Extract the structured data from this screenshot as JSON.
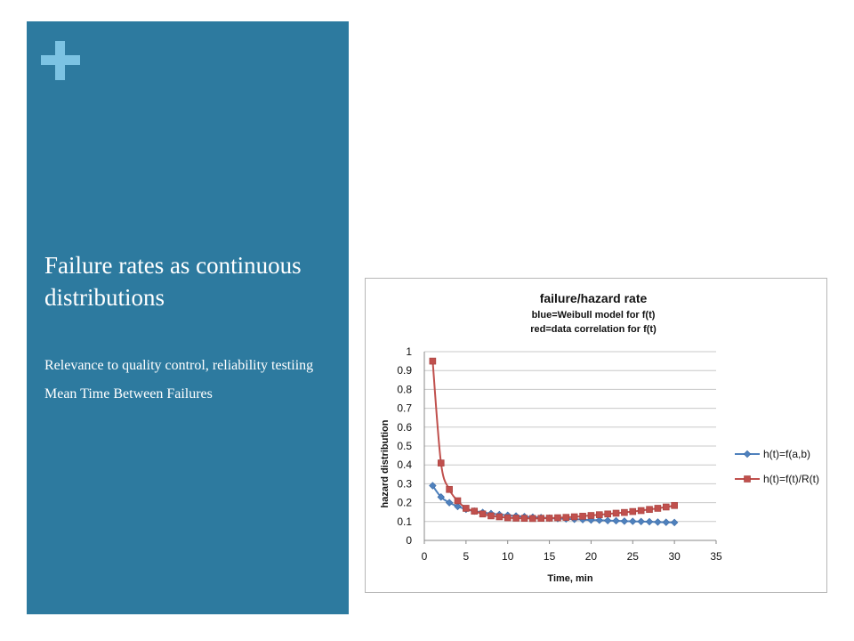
{
  "slide": {
    "title": "Failure rates as continuous distributions",
    "bullets": [
      "Relevance to quality control, reliability testiing",
      "Mean Time Between Failures"
    ],
    "panel_color": "#2d7a9f",
    "plus_color": "#7cc3e3",
    "plus_icon": "plus-icon"
  },
  "chart_data": {
    "type": "line",
    "title": "failure/hazard rate",
    "subtitle_lines": [
      "blue=Weibull model for f(t)",
      "red=data correlation for f(t)"
    ],
    "xlabel": "Time, min",
    "ylabel": "hazard distribution",
    "xlim": [
      0,
      35
    ],
    "ylim": [
      0,
      1
    ],
    "xticks": [
      0,
      5,
      10,
      15,
      20,
      25,
      30,
      35
    ],
    "yticks": [
      0,
      0.1,
      0.2,
      0.3,
      0.4,
      0.5,
      0.6,
      0.7,
      0.8,
      0.9,
      1
    ],
    "ytick_labels": [
      "0",
      "0.1",
      "0.2",
      "0.3",
      "0.4",
      "0.5",
      "0.6",
      "0.7",
      "0.8",
      "0.9",
      "1"
    ],
    "grid": "horizontal",
    "legend_position": "right",
    "series": [
      {
        "name": "h(t)=f(a,b)",
        "color": "#4f81bd",
        "marker": "diamond",
        "x": [
          1,
          2,
          3,
          4,
          5,
          6,
          7,
          8,
          9,
          10,
          11,
          12,
          13,
          14,
          15,
          16,
          17,
          18,
          19,
          20,
          21,
          22,
          23,
          24,
          25,
          26,
          27,
          28,
          29,
          30
        ],
        "values": [
          0.29,
          0.23,
          0.2,
          0.18,
          0.165,
          0.155,
          0.148,
          0.142,
          0.137,
          0.133,
          0.129,
          0.126,
          0.123,
          0.121,
          0.118,
          0.116,
          0.114,
          0.112,
          0.11,
          0.108,
          0.107,
          0.105,
          0.104,
          0.102,
          0.101,
          0.1,
          0.099,
          0.097,
          0.096,
          0.095
        ]
      },
      {
        "name": "h(t)=f(t)/R(t)",
        "color": "#c0504d",
        "marker": "square",
        "x": [
          1,
          2,
          3,
          4,
          5,
          6,
          7,
          8,
          9,
          10,
          11,
          12,
          13,
          14,
          15,
          16,
          17,
          18,
          19,
          20,
          21,
          22,
          23,
          24,
          25,
          26,
          27,
          28,
          29,
          30
        ],
        "values": [
          0.95,
          0.41,
          0.27,
          0.21,
          0.17,
          0.155,
          0.14,
          0.13,
          0.125,
          0.12,
          0.118,
          0.117,
          0.116,
          0.117,
          0.118,
          0.12,
          0.122,
          0.125,
          0.128,
          0.132,
          0.136,
          0.14,
          0.144,
          0.148,
          0.153,
          0.158,
          0.164,
          0.17,
          0.177,
          0.185
        ]
      }
    ]
  }
}
